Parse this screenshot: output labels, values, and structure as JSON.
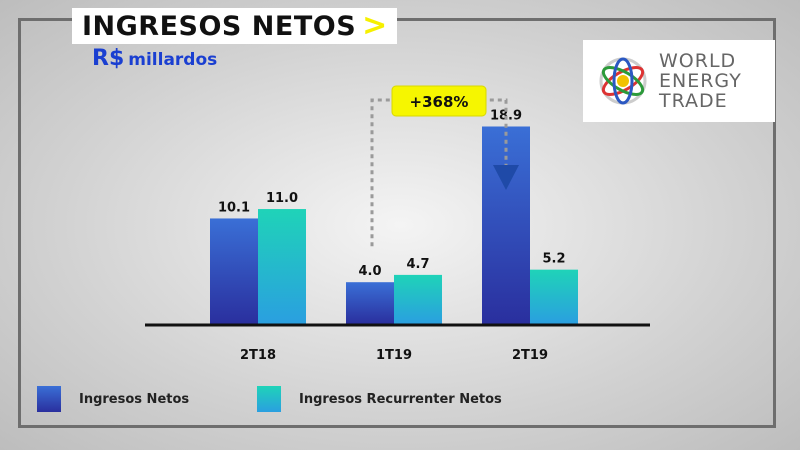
{
  "header": {
    "title": "INGRESOS NETOS",
    "title_marker": ">",
    "currency": "R$",
    "unit": "millardos"
  },
  "logo": {
    "lines": [
      "WORLD",
      "ENERGY",
      "TRADE"
    ],
    "icon": "globe-icon"
  },
  "colors": {
    "series1_top": "#3a6fd6",
    "series1_bottom": "#2a2f9e",
    "series2_top": "#1fd3b8",
    "series2_bottom": "#2a9fe0",
    "title_marker": "#f6f000",
    "callout_fill": "#f6f600",
    "arrow": "#1f4aa8"
  },
  "chart_data": {
    "type": "bar",
    "categories": [
      "2T18",
      "1T19",
      "2T19"
    ],
    "series": [
      {
        "name": "Ingresos Netos",
        "values": [
          10.1,
          4.0,
          18.9
        ]
      },
      {
        "name": "Ingresos Recurrenter Netos",
        "values": [
          11.0,
          4.7,
          5.2
        ]
      }
    ],
    "data_labels": [
      [
        "10.1",
        "4.0",
        "18.9"
      ],
      [
        "11.0",
        "4.7",
        "5.2"
      ]
    ],
    "ylim": [
      0,
      20
    ],
    "grid": false,
    "legend": "bottom",
    "annotation": {
      "text": "+368%",
      "from_category": "1T19",
      "to_category": "2T19"
    }
  }
}
